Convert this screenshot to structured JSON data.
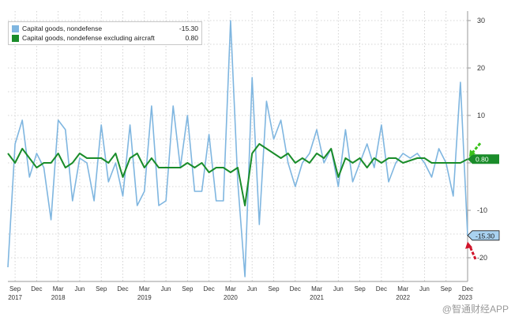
{
  "chart_data": {
    "type": "line",
    "legend": [
      {
        "name": "Capital goods, nondefense",
        "value": "-15.30",
        "color": "#7fb6e0"
      },
      {
        "name": "Capital goods, nondefense excluding aircraft",
        "value": "0.80",
        "color": "#1a8c2a"
      }
    ],
    "x_month_labels": [
      "Sep",
      "Dec",
      "Mar",
      "Jun",
      "Sep",
      "Dec",
      "Mar",
      "Jun",
      "Sep",
      "Dec",
      "Mar",
      "Jun",
      "Sep",
      "Dec",
      "Mar",
      "Jun",
      "Sep",
      "Dec",
      "Mar",
      "Jun",
      "Sep",
      "Dec"
    ],
    "x_year_labels": [
      "2017",
      "2018",
      "2019",
      "2020",
      "2021",
      "2022",
      "2023"
    ],
    "y_ticks": [
      30,
      20,
      10,
      0,
      -10,
      -20
    ],
    "y_tick_labels": [
      "30",
      "20",
      "10",
      "",
      "-10",
      "-20"
    ],
    "ylim": [
      -25,
      32
    ],
    "grid": true,
    "right_axis": true,
    "series": [
      {
        "name": "Capital goods, nondefense",
        "color": "#7fb6e0",
        "values": [
          -22,
          4,
          9,
          -3,
          2,
          -1,
          -12,
          9,
          7,
          -8,
          1,
          0,
          -8,
          8,
          -4,
          0,
          -7,
          8,
          -9,
          -6,
          12,
          -9,
          -8,
          12,
          -1,
          10,
          -6,
          -6,
          6,
          -8,
          -8,
          30,
          -4,
          -24,
          18,
          -13,
          13,
          5,
          9,
          0,
          -5,
          0,
          2,
          7,
          0,
          3,
          -5,
          7,
          -4,
          0,
          4,
          -1,
          8,
          -4,
          0,
          2,
          1,
          2,
          0,
          -3,
          3,
          0,
          -7,
          17,
          -15.3
        ],
        "last_label": "-15.30"
      },
      {
        "name": "Capital goods, nondefense excluding aircraft",
        "color": "#1a8c2a",
        "values": [
          2,
          0,
          3,
          1,
          -1,
          0,
          0,
          2,
          -1,
          0,
          2,
          1,
          1,
          1,
          0,
          2,
          -3,
          1,
          2,
          -1,
          1,
          -1,
          -1,
          -1,
          -1,
          0,
          -1,
          0,
          -2,
          -1,
          -1,
          -2,
          -1,
          -9,
          2,
          4,
          3,
          2,
          1,
          2,
          0,
          1,
          0,
          2,
          1,
          3,
          -3,
          1,
          0,
          1,
          -1,
          1,
          0,
          1,
          1,
          0,
          0.5,
          1,
          1,
          0,
          0,
          0,
          0,
          0,
          0.8
        ],
        "last_label": "0.80"
      }
    ]
  },
  "watermark": "@智通财经APP"
}
